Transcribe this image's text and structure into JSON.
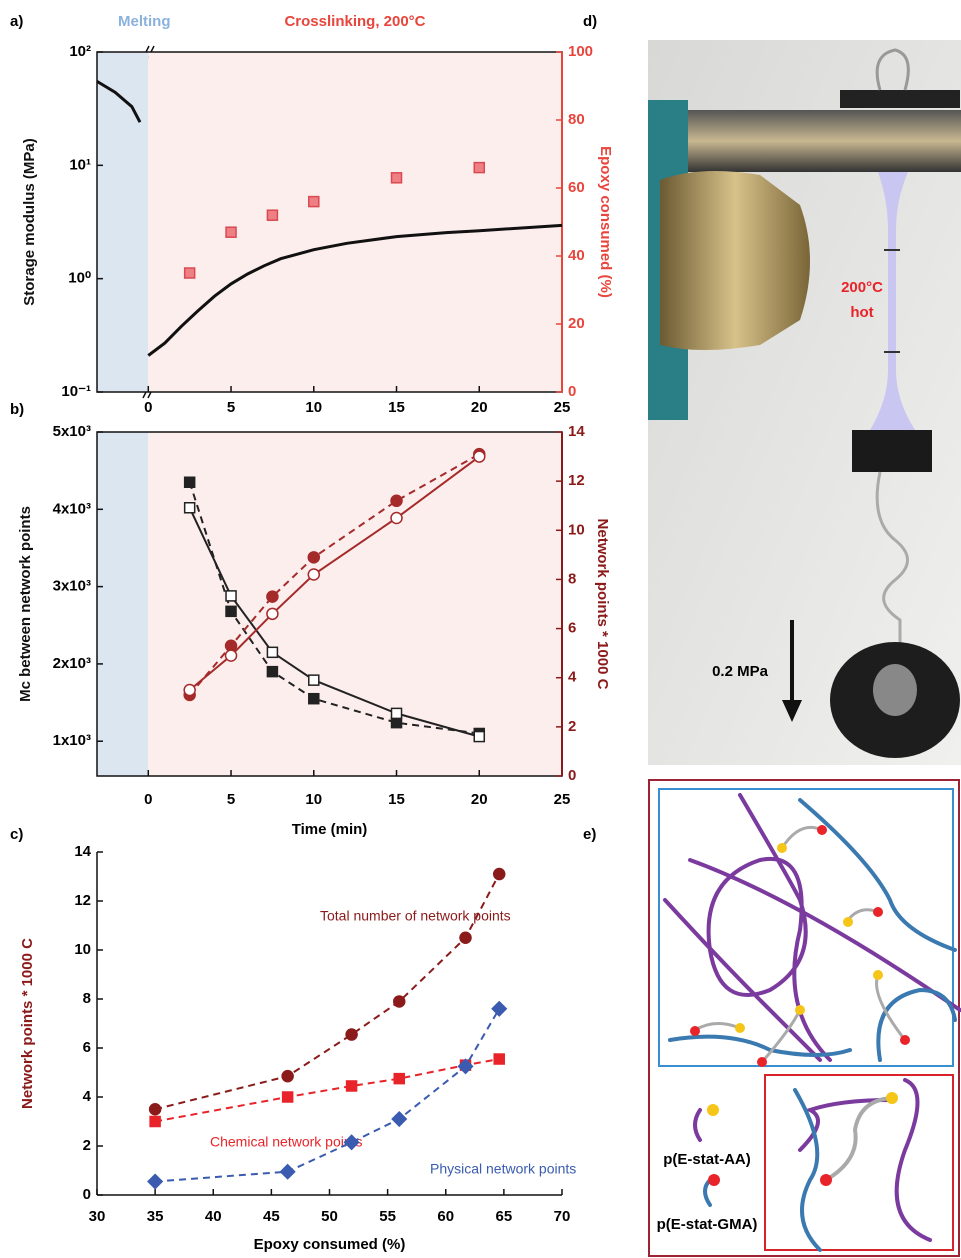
{
  "chart_data": [
    {
      "type": "scatter",
      "panel_label": "a)",
      "region_labels": [
        "Melting",
        "Crosslinking, 200°C"
      ],
      "ylabel": "Storage modulus (MPa)",
      "y2label": "Epoxy consumed (%)",
      "y2color": "#e8453c",
      "frame": true,
      "xlim": [
        -3.1,
        25
      ],
      "xticks": [
        0,
        5,
        10,
        15,
        20,
        25
      ],
      "ylim": [
        0.1,
        100
      ],
      "yscale": "log",
      "yticks": [
        {
          "value": 0.1,
          "label": "10⁻¹"
        },
        {
          "value": 1,
          "label": "10⁰"
        },
        {
          "value": 10,
          "label": "10¹"
        },
        {
          "value": 100,
          "label": "10²"
        }
      ],
      "y2lim": [
        0,
        100
      ],
      "y2ticks": [
        0,
        20,
        40,
        60,
        80,
        100
      ],
      "series": [
        {
          "color": "#111111",
          "marker": "none",
          "line": "solid",
          "x": [
            -3.1,
            -2,
            -1,
            -0.5,
            null,
            0,
            1,
            2,
            3,
            4,
            5,
            6,
            7,
            8,
            10,
            12,
            15,
            18,
            20,
            25
          ],
          "values": [
            55,
            44,
            33,
            24,
            null,
            0.21,
            0.27,
            0.38,
            0.52,
            0.7,
            0.9,
            1.1,
            1.3,
            1.5,
            1.8,
            2.05,
            2.35,
            2.55,
            2.65,
            2.95
          ]
        },
        {
          "color": "#ee7f84",
          "marker": "square-filled",
          "line": "none",
          "axis": "y2",
          "x": [
            2.5,
            5,
            7.5,
            10,
            15,
            20
          ],
          "values": [
            35,
            47,
            52,
            56,
            63,
            66
          ]
        }
      ]
    },
    {
      "type": "scatter",
      "panel_label": "b)",
      "xlabel": "Time (min)",
      "ylabel": "Mc between network points",
      "y2label": "Network points * 1000 C",
      "y2color": "#8b1a1a",
      "frame": true,
      "xlim": [
        -3.1,
        25
      ],
      "xticks": [
        0,
        5,
        10,
        15,
        20,
        25
      ],
      "ylim": [
        550,
        5000
      ],
      "yticks": [
        {
          "value": 1000,
          "label": "1x10³"
        },
        {
          "value": 2000,
          "label": "2x10³"
        },
        {
          "value": 3000,
          "label": "3x10³"
        },
        {
          "value": 4000,
          "label": "4x10³"
        },
        {
          "value": 5000,
          "label": "5x10³"
        }
      ],
      "y2lim": [
        0,
        14
      ],
      "y2ticks": [
        0,
        2,
        4,
        6,
        8,
        10,
        12,
        14
      ],
      "series": [
        {
          "color": "#222222",
          "marker": "square-filled",
          "line": "dashed",
          "x": [
            2.5,
            5,
            7.5,
            10,
            15,
            20
          ],
          "values": [
            4350,
            2680,
            1900,
            1550,
            1240,
            1100
          ]
        },
        {
          "color": "#222222",
          "marker": "square-open",
          "line": "solid",
          "x": [
            2.5,
            5,
            7.5,
            10,
            15,
            20
          ],
          "values": [
            4020,
            2880,
            2150,
            1790,
            1360,
            1060
          ]
        },
        {
          "color": "#a52a2a",
          "marker": "circle-filled",
          "line": "dashed",
          "axis": "y2",
          "x": [
            2.5,
            5,
            7.5,
            10,
            15,
            20
          ],
          "values": [
            3.3,
            5.3,
            7.3,
            8.9,
            11.2,
            13.1
          ]
        },
        {
          "color": "#a52a2a",
          "marker": "circle-open",
          "line": "solid",
          "axis": "y2",
          "x": [
            2.5,
            5,
            7.5,
            10,
            15,
            20
          ],
          "values": [
            3.5,
            4.9,
            6.6,
            8.2,
            10.5,
            13.0
          ]
        }
      ]
    },
    {
      "type": "scatter",
      "panel_label": "c)",
      "xlabel": "Epoxy consumed (%)",
      "ylabel": "Network points * 1000 C",
      "ylabelcolor": "#8b1a1a",
      "frame": false,
      "xlim": [
        30,
        70
      ],
      "xticks": [
        30,
        35,
        40,
        45,
        50,
        55,
        60,
        65,
        70
      ],
      "ylim": [
        0,
        14
      ],
      "yticks": [
        0,
        2,
        4,
        6,
        8,
        10,
        12,
        14
      ],
      "series": [
        {
          "name": "Total number of network points",
          "color": "#8b1a1a",
          "marker": "circle-filled",
          "line": "dashed",
          "x": [
            35,
            46.4,
            51.9,
            56,
            61.7,
            64.6
          ],
          "values": [
            3.5,
            4.85,
            6.55,
            7.9,
            10.5,
            13.1
          ]
        },
        {
          "name": "Chemical network points",
          "color": "#e8242a",
          "marker": "square-filled",
          "line": "dashed",
          "x": [
            35,
            46.4,
            51.9,
            56,
            61.7,
            64.6
          ],
          "values": [
            3.0,
            4.0,
            4.45,
            4.75,
            5.3,
            5.55
          ]
        },
        {
          "name": "Physical network points",
          "color": "#3a5bb0",
          "marker": "diamond-filled",
          "line": "dashed",
          "x": [
            35,
            46.4,
            51.9,
            56,
            61.7,
            64.6
          ],
          "values": [
            0.55,
            0.95,
            2.15,
            3.1,
            5.25,
            7.6
          ]
        }
      ]
    }
  ],
  "photo": {
    "panel_label": "d)",
    "hot_label": [
      "200°C",
      "hot"
    ],
    "stress_label": "0.2 MPa"
  },
  "diagram": {
    "panel_label": "e)",
    "labels": [
      "p(E-stat-AA)",
      "p(E-stat-GMA)"
    ]
  }
}
